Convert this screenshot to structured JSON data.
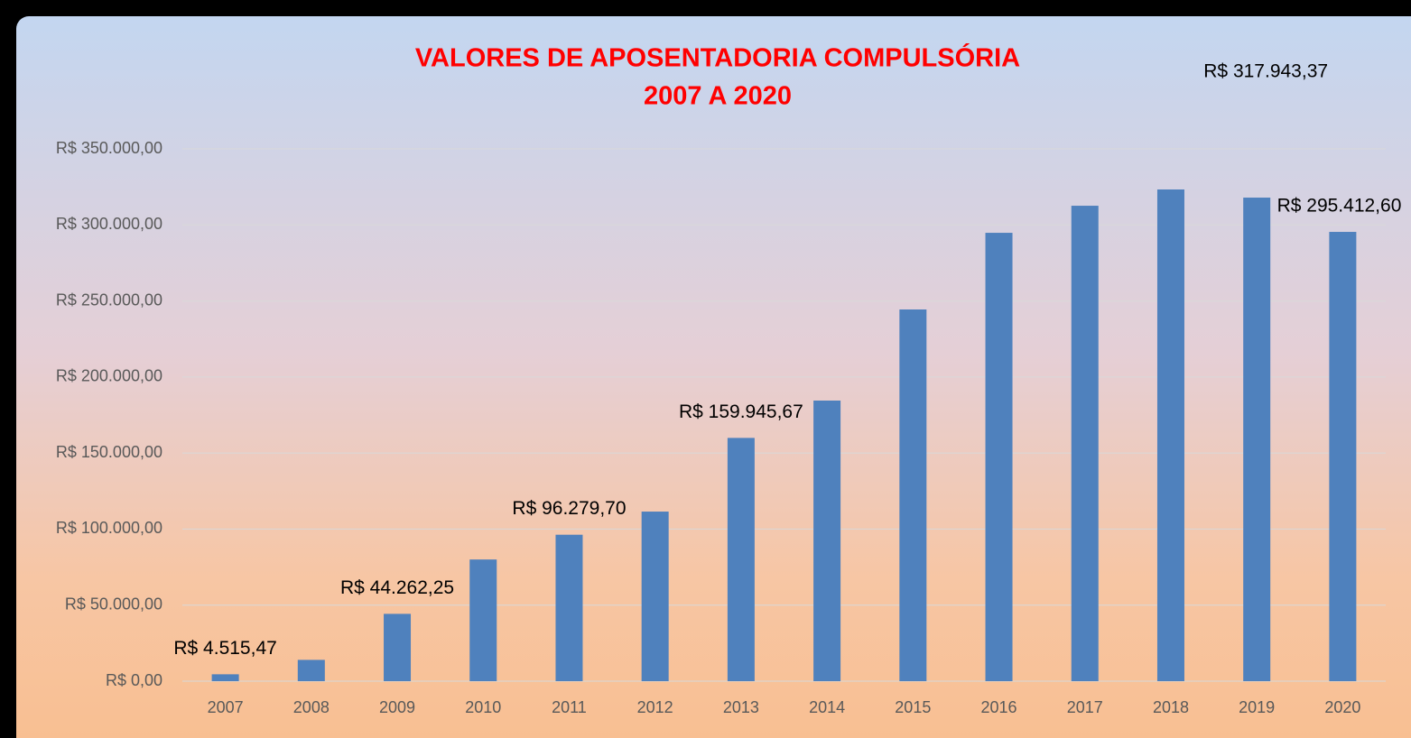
{
  "chart_data": {
    "type": "bar",
    "title": [
      "VALORES DE APOSENTADORIA COMPULSÓRIA",
      "2007 A 2020"
    ],
    "categories": [
      "2007",
      "2008",
      "2009",
      "2010",
      "2011",
      "2012",
      "2013",
      "2014",
      "2015",
      "2016",
      "2017",
      "2018",
      "2019",
      "2020"
    ],
    "values": [
      4515.47,
      14000,
      44262.25,
      80000,
      96279.7,
      111500,
      159945.67,
      184500,
      244400,
      294800,
      312600,
      323300,
      317943.37,
      295412.6
    ],
    "value_labels": [
      "R$ 4.515,47",
      null,
      "R$ 44.262,25",
      null,
      "R$ 96.279,70",
      null,
      "R$ 159.945,67",
      null,
      null,
      null,
      null,
      null,
      "R$ 317.943,37",
      "R$ 295.412,60"
    ],
    "color": "#4f81bd",
    "ylim": [
      0,
      350000
    ],
    "yticks": [
      {
        "value": 0,
        "label": "R$ 0,00"
      },
      {
        "value": 50000,
        "label": "R$ 50.000,00"
      },
      {
        "value": 100000,
        "label": "R$ 100.000,00"
      },
      {
        "value": 150000,
        "label": "R$ 150.000,00"
      },
      {
        "value": 200000,
        "label": "R$ 200.000,00"
      },
      {
        "value": 250000,
        "label": "R$ 250.000,00"
      },
      {
        "value": 300000,
        "label": "R$ 300.000,00"
      },
      {
        "value": 350000,
        "label": "R$ 350.000,00"
      }
    ],
    "grid": true
  }
}
